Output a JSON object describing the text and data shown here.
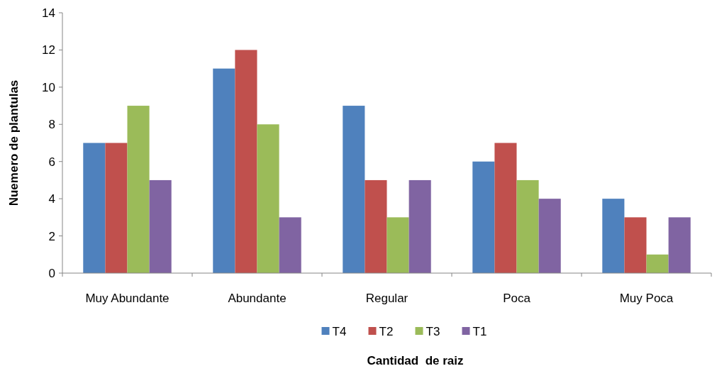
{
  "chart_data": {
    "type": "bar",
    "xlabel": "Cantidad  de raiz",
    "ylabel": "Nuemero de plantulas",
    "categories": [
      "Muy Abundante",
      "Abundante",
      "Regular",
      "Poca",
      "Muy Poca"
    ],
    "series": [
      {
        "name": "T4",
        "color": "#4f81bd",
        "values": [
          7,
          11,
          9,
          6,
          4
        ]
      },
      {
        "name": "T2",
        "color": "#c0504d",
        "values": [
          7,
          12,
          5,
          7,
          3
        ]
      },
      {
        "name": "T3",
        "color": "#9bbb59",
        "values": [
          9,
          8,
          3,
          5,
          1
        ]
      },
      {
        "name": "T1",
        "color": "#8064a2",
        "values": [
          5,
          3,
          5,
          4,
          3
        ]
      }
    ],
    "ylim": [
      0,
      14
    ],
    "yticks": [
      0,
      2,
      4,
      6,
      8,
      10,
      12,
      14
    ],
    "grid": false,
    "legend": "bottom"
  }
}
